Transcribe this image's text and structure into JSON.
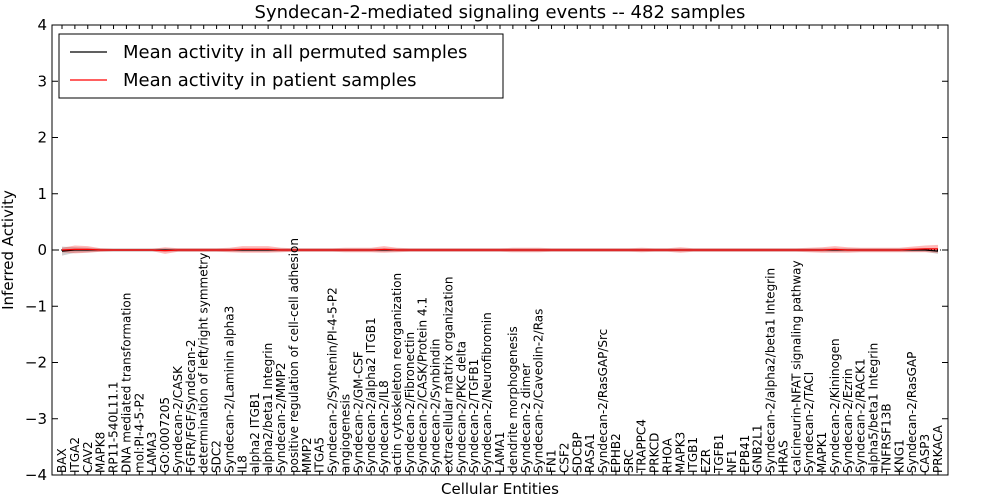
{
  "chart_data": {
    "type": "line",
    "title": "Syndecan-2-mediated signaling events -- 482 samples",
    "xlabel": "Cellular Entities",
    "ylabel": "Inferred Activity",
    "ylim": [
      -4,
      4
    ],
    "yticks": [
      "4",
      "3",
      "2",
      "1",
      "0",
      "−1",
      "−2",
      "−3",
      "−4"
    ],
    "legend": {
      "location": "top-left",
      "entries": [
        {
          "name": "Mean activity in all permuted samples",
          "color": "#000000"
        },
        {
          "name": "Mean activity in patient samples",
          "color": "#ff0000"
        }
      ]
    },
    "categories": [
      "BAX",
      "ITGA2",
      "CAV2",
      "MAPK8",
      "RP11-540L11.1",
      "DNA mediated transformation",
      "mol:PI-4-5-P2",
      "LAMA3",
      "GO:0007205",
      "Syndecan-2/CASK",
      "FGFR/FGF/Syndecan-2",
      "determination of left/right symmetry",
      "SDC2",
      "Syndecan-2/Laminin alpha3",
      "IL8",
      "alpha2 ITGB1",
      "alpha2/beta1 Integrin",
      "Syndecan-2/MMP2",
      "positive regulation of cell-cell adhesion",
      "MMP2",
      "ITGA5",
      "Syndecan-2/Syntenin/PI-4-5-P2",
      "angiogenesis",
      "Syndecan-2/GM-CSF",
      "Syndecan-2/alpha2 ITGB1",
      "Syndecan-2/IL8",
      "actin cytoskeleton reorganization",
      "Syndecan-2/Fibronectin",
      "Syndecan-2/CASK/Protein 4.1",
      "Syndecan-2/Synbindin",
      "extracellular matrix organization",
      "Syndecan-2/PKC delta",
      "Syndecan-2/TGFB1",
      "Syndecan-2/Neurofibromin",
      "LAMA1",
      "dendrite morphogenesis",
      "Syndecan-2 dimer",
      "Syndecan-2/Caveolin-2/Ras",
      "FN1",
      "CSF2",
      "SDCBP",
      "RASA1",
      "Syndecan-2/RasGAP/Src",
      "EPHB2",
      "SRC",
      "TRAPPC4",
      "PRKCD",
      "RHOA",
      "MAPK3",
      "ITGB1",
      "EZR",
      "TGFB1",
      "NF1",
      "EPB41",
      "GNB2L1",
      "Syndecan-2/alpha2/beta1 Integrin",
      "HRAS",
      "calcineurin-NFAT signaling pathway",
      "Syndecan-2/TACI",
      "MAPK1",
      "Syndecan-2/Kininogen",
      "Syndecan-2/Ezrin",
      "Syndecan-2/RACK1",
      "alpha5/beta1 Integrin",
      "TNFRSF13B",
      "KNG1",
      "Syndecan-2/RasGAP",
      "CASP3",
      "PRKACA"
    ],
    "series": [
      {
        "name": "Mean activity in all permuted samples",
        "color": "#000000",
        "values": [
          -0.02,
          0.0,
          0.0,
          0.0,
          0.0,
          0.0,
          0.0,
          0.0,
          0.0,
          0.0,
          0.0,
          0.0,
          0.0,
          0.0,
          0.0,
          0.0,
          0.0,
          0.0,
          0.0,
          0.0,
          0.0,
          0.0,
          0.0,
          0.0,
          0.0,
          0.0,
          0.0,
          0.0,
          0.0,
          0.0,
          0.0,
          0.0,
          0.0,
          0.0,
          0.0,
          0.0,
          0.0,
          0.0,
          0.0,
          0.0,
          0.0,
          0.0,
          0.0,
          0.0,
          0.0,
          0.0,
          0.0,
          0.0,
          0.0,
          0.0,
          0.0,
          0.0,
          0.0,
          0.0,
          0.0,
          0.0,
          0.0,
          0.0,
          0.0,
          0.0,
          0.0,
          0.0,
          0.0,
          0.0,
          0.0,
          0.0,
          0.0,
          0.0,
          -0.02
        ],
        "band": [
          0.08,
          0.05,
          0.04,
          0.03,
          0.03,
          0.03,
          0.03,
          0.03,
          0.03,
          0.03,
          0.03,
          0.03,
          0.03,
          0.03,
          0.03,
          0.03,
          0.03,
          0.03,
          0.03,
          0.03,
          0.03,
          0.03,
          0.03,
          0.03,
          0.03,
          0.03,
          0.03,
          0.03,
          0.03,
          0.03,
          0.03,
          0.03,
          0.03,
          0.03,
          0.03,
          0.03,
          0.03,
          0.03,
          0.03,
          0.03,
          0.03,
          0.03,
          0.03,
          0.03,
          0.03,
          0.03,
          0.03,
          0.03,
          0.03,
          0.03,
          0.03,
          0.03,
          0.03,
          0.03,
          0.03,
          0.03,
          0.03,
          0.03,
          0.03,
          0.03,
          0.03,
          0.03,
          0.03,
          0.03,
          0.03,
          0.03,
          0.03,
          0.03,
          0.05
        ]
      },
      {
        "name": "Mean activity in patient samples",
        "color": "#ff0000",
        "values": [
          0.0,
          0.01,
          0.01,
          0.0,
          0.0,
          0.0,
          0.0,
          0.0,
          -0.01,
          0.0,
          0.0,
          0.0,
          0.0,
          0.0,
          0.01,
          0.01,
          0.01,
          0.0,
          0.0,
          0.0,
          0.0,
          0.0,
          0.0,
          0.0,
          0.0,
          0.01,
          0.0,
          0.0,
          0.0,
          0.0,
          0.0,
          0.0,
          0.0,
          0.0,
          0.0,
          0.0,
          0.0,
          0.0,
          0.0,
          0.0,
          0.0,
          0.0,
          0.0,
          0.0,
          0.0,
          0.0,
          0.0,
          0.0,
          0.0,
          0.0,
          0.0,
          0.0,
          0.0,
          0.0,
          0.0,
          0.0,
          0.0,
          0.0,
          0.0,
          0.0,
          0.01,
          0.0,
          0.0,
          0.0,
          0.0,
          0.0,
          0.01,
          0.02,
          0.02
        ],
        "band": [
          0.04,
          0.07,
          0.06,
          0.03,
          0.02,
          0.02,
          0.02,
          0.02,
          0.06,
          0.03,
          0.03,
          0.03,
          0.03,
          0.04,
          0.06,
          0.06,
          0.06,
          0.04,
          0.03,
          0.03,
          0.03,
          0.03,
          0.04,
          0.04,
          0.04,
          0.06,
          0.04,
          0.03,
          0.03,
          0.03,
          0.03,
          0.03,
          0.03,
          0.03,
          0.03,
          0.04,
          0.04,
          0.04,
          0.03,
          0.03,
          0.03,
          0.03,
          0.03,
          0.03,
          0.03,
          0.04,
          0.03,
          0.03,
          0.05,
          0.03,
          0.03,
          0.03,
          0.03,
          0.03,
          0.03,
          0.03,
          0.03,
          0.03,
          0.04,
          0.05,
          0.06,
          0.05,
          0.04,
          0.04,
          0.04,
          0.04,
          0.05,
          0.06,
          0.07
        ]
      }
    ],
    "zero_line": {
      "style": "dotted"
    }
  }
}
